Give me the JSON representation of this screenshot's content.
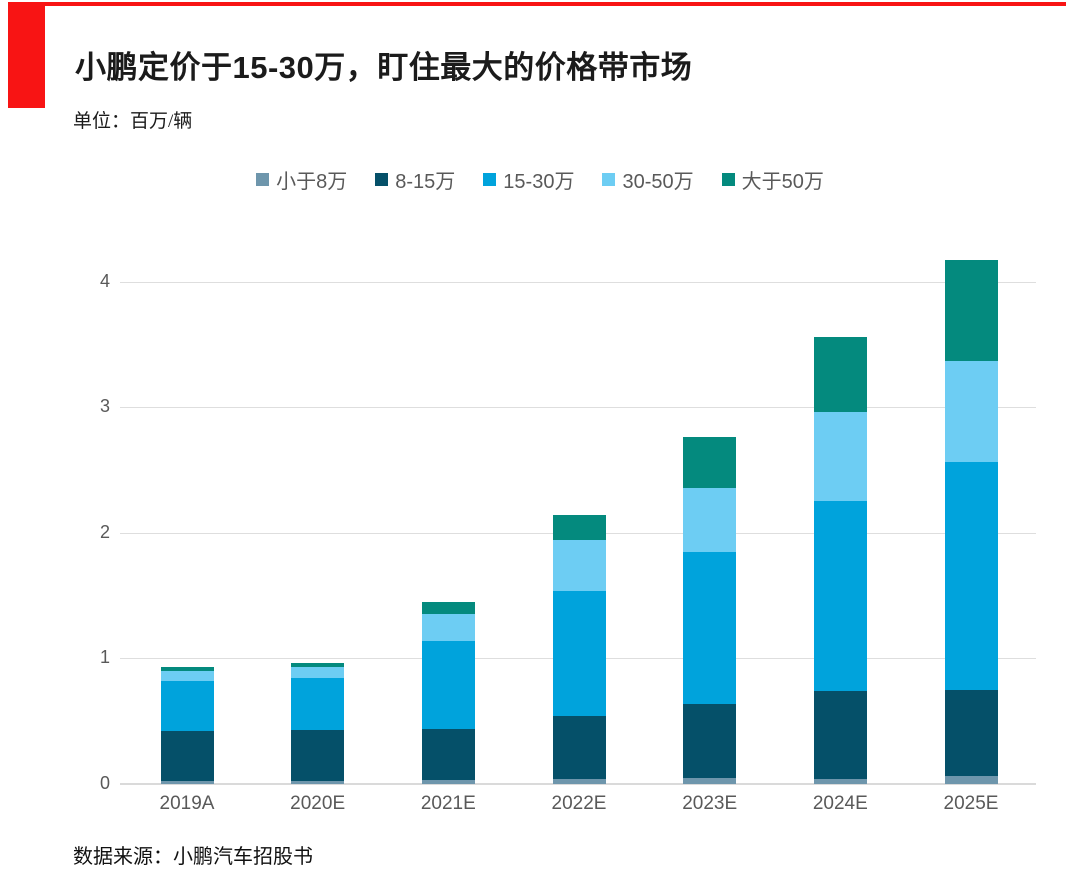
{
  "header": {
    "title": "小鹏定价于15-30万，盯住最大的价格带市场",
    "unit_label": "单位：百万/辆",
    "accent_color": "#f81414"
  },
  "footer": {
    "source": "数据来源：小鹏汽车招股书"
  },
  "chart_data": {
    "type": "bar",
    "stacked": true,
    "title": "小鹏定价于15-30万，盯住最大的价格带市场",
    "unit": "百万/辆",
    "categories": [
      "2019A",
      "2020E",
      "2021E",
      "2022E",
      "2023E",
      "2024E",
      "2025E"
    ],
    "series": [
      {
        "name": "小于8万",
        "color": "#6e96ac",
        "values": [
          0.02,
          0.02,
          0.03,
          0.04,
          0.05,
          0.04,
          0.06
        ]
      },
      {
        "name": "8-15万",
        "color": "#055069",
        "values": [
          0.4,
          0.41,
          0.41,
          0.5,
          0.59,
          0.7,
          0.69
        ]
      },
      {
        "name": "15-30万",
        "color": "#00a3dc",
        "values": [
          0.4,
          0.41,
          0.7,
          1.0,
          1.21,
          1.51,
          1.81
        ]
      },
      {
        "name": "30-50万",
        "color": "#6dcdf3",
        "values": [
          0.08,
          0.09,
          0.21,
          0.4,
          0.51,
          0.71,
          0.81
        ]
      },
      {
        "name": "大于50万",
        "color": "#048a7e",
        "values": [
          0.03,
          0.03,
          0.1,
          0.2,
          0.4,
          0.6,
          0.8
        ]
      }
    ],
    "totals": [
      0.93,
      0.96,
      1.45,
      2.14,
      2.76,
      3.56,
      4.17
    ],
    "yticks": [
      0,
      1,
      2,
      3,
      4
    ],
    "ylim": [
      0,
      4.3
    ],
    "xlabel": "",
    "ylabel": "",
    "grid": true,
    "legend_position": "top-center"
  }
}
